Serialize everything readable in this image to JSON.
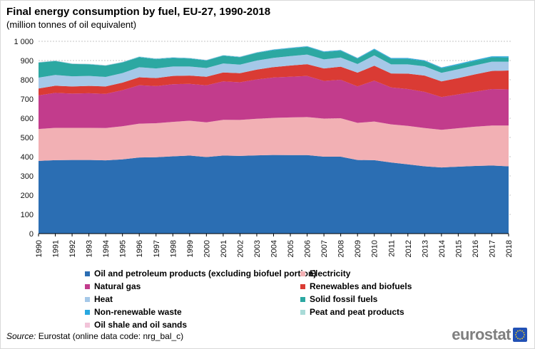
{
  "header": {
    "title": "Final energy consumption by fuel, EU-27, 1990-2018",
    "subtitle": "(million tonnes of oil equivalent)"
  },
  "chart_data": {
    "type": "area",
    "stacked": true,
    "title": "Final energy consumption by fuel, EU-27, 1990-2018",
    "unit": "million tonnes of oil equivalent",
    "grid": "dashed horizontal, every 100",
    "legend_position": "bottom",
    "ylim": [
      0,
      1000
    ],
    "y_ticks": [
      "0",
      "100",
      "200",
      "300",
      "400",
      "500",
      "600",
      "700",
      "800",
      "900",
      "1 000"
    ],
    "x": [
      "1990",
      "1991",
      "1992",
      "1993",
      "1994",
      "1995",
      "1996",
      "1997",
      "1998",
      "1999",
      "2000",
      "2001",
      "2002",
      "2003",
      "2004",
      "2005",
      "2006",
      "2007",
      "2008",
      "2009",
      "2010",
      "2011",
      "2012",
      "2013",
      "2014",
      "2015",
      "2016",
      "2017",
      "2018"
    ],
    "series": [
      {
        "name": "Oil and petroleum products (excluding biofuel portion)",
        "color": "#2b6eb3",
        "values": [
          378,
          382,
          383,
          383,
          381,
          386,
          396,
          397,
          402,
          406,
          398,
          406,
          404,
          407,
          409,
          408,
          408,
          400,
          400,
          383,
          382,
          370,
          360,
          350,
          344,
          348,
          352,
          354,
          350
        ]
      },
      {
        "name": "Electricity",
        "color": "#f2b0b4",
        "values": [
          166,
          168,
          167,
          167,
          168,
          172,
          176,
          177,
          179,
          181,
          181,
          186,
          187,
          190,
          193,
          196,
          198,
          198,
          200,
          193,
          201,
          198,
          200,
          199,
          196,
          200,
          204,
          208,
          212
        ]
      },
      {
        "name": "Natural gas",
        "color": "#c23c8c",
        "values": [
          175,
          182,
          178,
          180,
          178,
          188,
          200,
          193,
          196,
          192,
          192,
          200,
          196,
          205,
          210,
          212,
          214,
          196,
          200,
          190,
          212,
          192,
          192,
          188,
          170,
          176,
          182,
          190,
          188
        ]
      },
      {
        "name": "Renewables and biofuels",
        "color": "#da3b34",
        "values": [
          36,
          37,
          37,
          38,
          38,
          39,
          41,
          42,
          43,
          43,
          45,
          46,
          47,
          51,
          54,
          58,
          61,
          65,
          68,
          71,
          78,
          73,
          80,
          85,
          82,
          85,
          90,
          94,
          98
        ]
      },
      {
        "name": "Heat",
        "color": "#a5c8e8",
        "values": [
          56,
          56,
          53,
          52,
          50,
          50,
          52,
          50,
          49,
          47,
          45,
          47,
          45,
          47,
          48,
          49,
          50,
          47,
          48,
          45,
          54,
          47,
          48,
          48,
          44,
          46,
          47,
          48,
          46
        ]
      },
      {
        "name": "Solid fossil fuels",
        "color": "#2ca8a2",
        "values": [
          78,
          72,
          64,
          60,
          58,
          55,
          52,
          48,
          44,
          41,
          39,
          40,
          38,
          40,
          40,
          40,
          40,
          38,
          35,
          28,
          30,
          29,
          29,
          27,
          24,
          23,
          23,
          23,
          22
        ]
      },
      {
        "name": "Non-renewable waste",
        "color": "#29a8e0",
        "values": [
          1,
          1,
          1,
          1,
          1,
          1,
          2,
          2,
          2,
          2,
          2,
          2,
          2,
          2,
          3,
          3,
          3,
          3,
          3,
          3,
          4,
          4,
          4,
          4,
          4,
          5,
          5,
          5,
          6
        ]
      },
      {
        "name": "Peat and peat products",
        "color": "#a9dbd8",
        "values": [
          2,
          2,
          2,
          2,
          2,
          2,
          2,
          2,
          2,
          2,
          1.5,
          1.5,
          1.5,
          1.5,
          1.5,
          1.5,
          1.5,
          1.5,
          1.5,
          1.5,
          1.5,
          1,
          1,
          1,
          1,
          1,
          1,
          1,
          1
        ]
      },
      {
        "name": "Oil shale and oil sands",
        "color": "#f2c4d9",
        "values": [
          0.5,
          0.5,
          0.5,
          0.5,
          0.5,
          0.5,
          0.5,
          0.5,
          0.5,
          0.5,
          0.5,
          0.5,
          0.5,
          0.5,
          0.5,
          0.5,
          0.5,
          0.5,
          0.5,
          0.5,
          0.5,
          0.5,
          0.5,
          0.5,
          0.5,
          0.5,
          0.5,
          0.5,
          0.5
        ]
      }
    ]
  },
  "legend": {
    "column1": [
      0,
      2,
      4,
      6,
      8
    ],
    "column2": [
      1,
      3,
      5,
      7
    ]
  },
  "source": {
    "prefix": "Source:",
    "text": " Eurostat (online data code: nrg_bal_c)"
  },
  "logo": {
    "text": "eurostat",
    "flag_blue": "#2251b5",
    "star_yellow": "#ffd617"
  }
}
